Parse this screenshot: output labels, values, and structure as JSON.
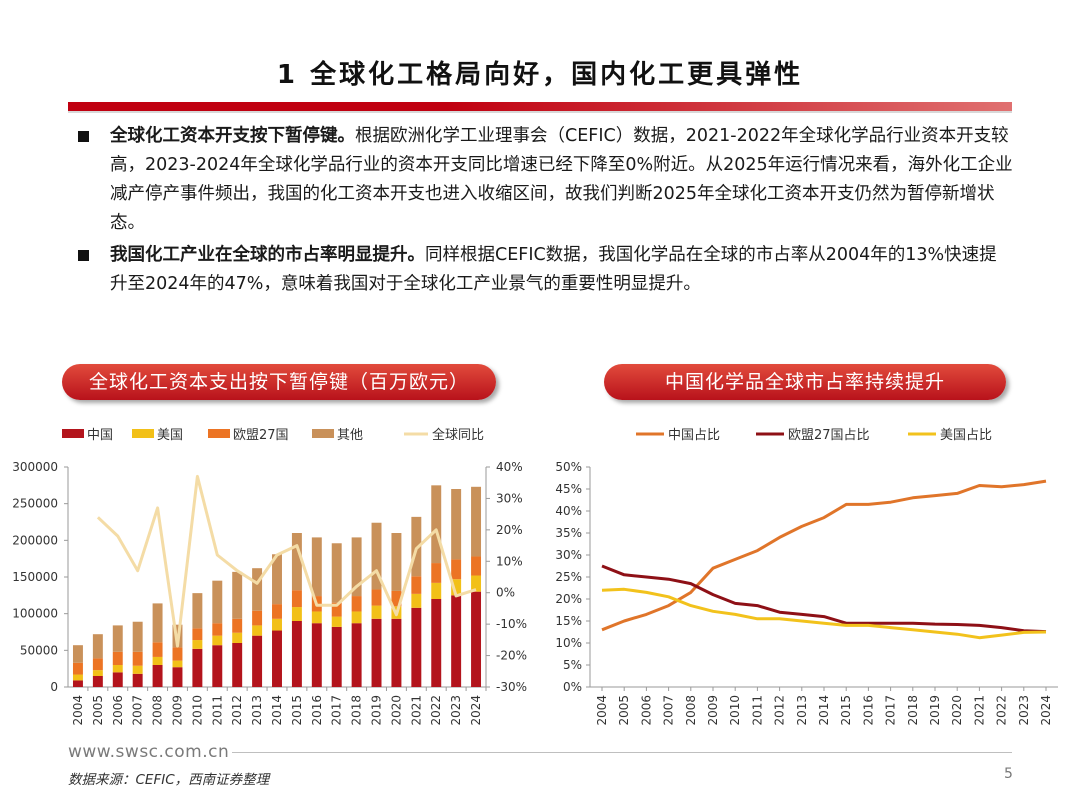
{
  "title": "1 全球化工格局向好，国内化工更具弹性",
  "bullets": [
    {
      "bold": "全球化工资本开支按下暂停键。",
      "text": "根据欧洲化学工业理事会（CEFIC）数据，2021-2022年全球化学品行业资本开支较高，2023-2024年全球化学品行业的资本开支同比增速已经下降至0%附近。从2025年运行情况来看，海外化工企业减产停产事件频出，我国的化工资本开支也进入收缩区间，故我们判断2025年全球化工资本开支仍然为暂停新增状态。"
    },
    {
      "bold": "我国化工产业在全球的市占率明显提升。",
      "text": "同样根据CEFIC数据，我国化学品在全球的市占率从2004年的13%快速提升至2024年的47%，意味着我国对于全球化工产业景气的重要性明显提升。"
    }
  ],
  "footer": {
    "url": "www.swsc.com.cn",
    "source": "数据来源：CEFIC，西南证券整理",
    "page": "5"
  },
  "chart_data": [
    {
      "type": "bar",
      "title": "全球化工资本支出按下暂停键（百万欧元）",
      "stacked": true,
      "categories": [
        "2004",
        "2005",
        "2006",
        "2007",
        "2008",
        "2009",
        "2010",
        "2011",
        "2012",
        "2013",
        "2014",
        "2015",
        "2016",
        "2017",
        "2018",
        "2019",
        "2020",
        "2021",
        "2022",
        "2023",
        "2024"
      ],
      "ylim": [
        0,
        300000
      ],
      "yticks": [
        "300000",
        "250000",
        "200000",
        "150000",
        "100000",
        "50000",
        "0"
      ],
      "y2lim": [
        -30,
        40
      ],
      "y2ticks": [
        "40%",
        "30%",
        "20%",
        "10%",
        "0%",
        "-10%",
        "-20%",
        "-30%"
      ],
      "colors": {
        "中国": "#b3141c",
        "美国": "#f2c018",
        "欧盟27国": "#ec7424",
        "其他": "#c9915a",
        "全球同比": "#f4dca6"
      },
      "series": [
        {
          "name": "中国",
          "values": [
            9000,
            15000,
            20000,
            18000,
            30000,
            27000,
            52000,
            57000,
            60000,
            70000,
            77000,
            90000,
            87000,
            82000,
            87000,
            93000,
            93000,
            108000,
            120000,
            125000,
            130000
          ]
        },
        {
          "name": "美国",
          "values": [
            8000,
            8000,
            10000,
            11000,
            11000,
            9000,
            12000,
            13000,
            14000,
            14000,
            16000,
            19000,
            16000,
            14000,
            16000,
            18000,
            17000,
            19000,
            22000,
            22000,
            22000
          ]
        },
        {
          "name": "欧盟27国",
          "values": [
            16000,
            16000,
            18000,
            19000,
            20000,
            18000,
            16000,
            17000,
            19000,
            20000,
            20000,
            23000,
            21000,
            19000,
            21000,
            22000,
            21000,
            24000,
            27000,
            27000,
            26000
          ]
        },
        {
          "name": "其他",
          "values": [
            24000,
            33000,
            36000,
            41000,
            53000,
            31000,
            48000,
            58000,
            64000,
            58000,
            68000,
            78000,
            80000,
            81000,
            80000,
            91000,
            79000,
            81000,
            106000,
            96000,
            95000
          ]
        }
      ],
      "line_series": {
        "name": "全球同比",
        "axis": "right",
        "values": [
          24,
          18,
          7,
          27,
          -17,
          37,
          12,
          7,
          3,
          12,
          15,
          -4,
          -4,
          2,
          7,
          -7,
          14,
          20,
          -1,
          1
        ]
      }
    },
    {
      "type": "line",
      "title": "中国化学品全球市占率持续提升",
      "categories": [
        "2004",
        "2005",
        "2006",
        "2007",
        "2008",
        "2009",
        "2010",
        "2011",
        "2012",
        "2013",
        "2014",
        "2015",
        "2016",
        "2017",
        "2018",
        "2019",
        "2020",
        "2021",
        "2022",
        "2023",
        "2024"
      ],
      "ylim": [
        0,
        50
      ],
      "yticks": [
        "50%",
        "45%",
        "40%",
        "35%",
        "30%",
        "25%",
        "20%",
        "15%",
        "10%",
        "5%",
        "0%"
      ],
      "series": [
        {
          "name": "中国占比",
          "color": "#e0752a",
          "values": [
            13,
            15,
            16.5,
            18.5,
            21.5,
            27,
            29,
            31,
            34,
            36.5,
            38.5,
            41.5,
            41.5,
            42,
            43,
            43.5,
            44,
            45.8,
            45.5,
            46,
            46.8
          ]
        },
        {
          "name": "欧盟27国占比",
          "color": "#8e1016",
          "values": [
            27.5,
            25.5,
            25,
            24.5,
            23.5,
            21,
            19,
            18.5,
            17,
            16.5,
            16,
            14.5,
            14.5,
            14.5,
            14.5,
            14.3,
            14.2,
            14,
            13.5,
            12.8,
            12.6
          ]
        },
        {
          "name": "美国占比",
          "color": "#f2c21c",
          "values": [
            22,
            22.2,
            21.5,
            20.5,
            18.5,
            17.2,
            16.5,
            15.5,
            15.5,
            15,
            14.5,
            14,
            14,
            13.5,
            13,
            12.5,
            12,
            11.2,
            11.8,
            12.4,
            12.5
          ]
        }
      ]
    }
  ]
}
